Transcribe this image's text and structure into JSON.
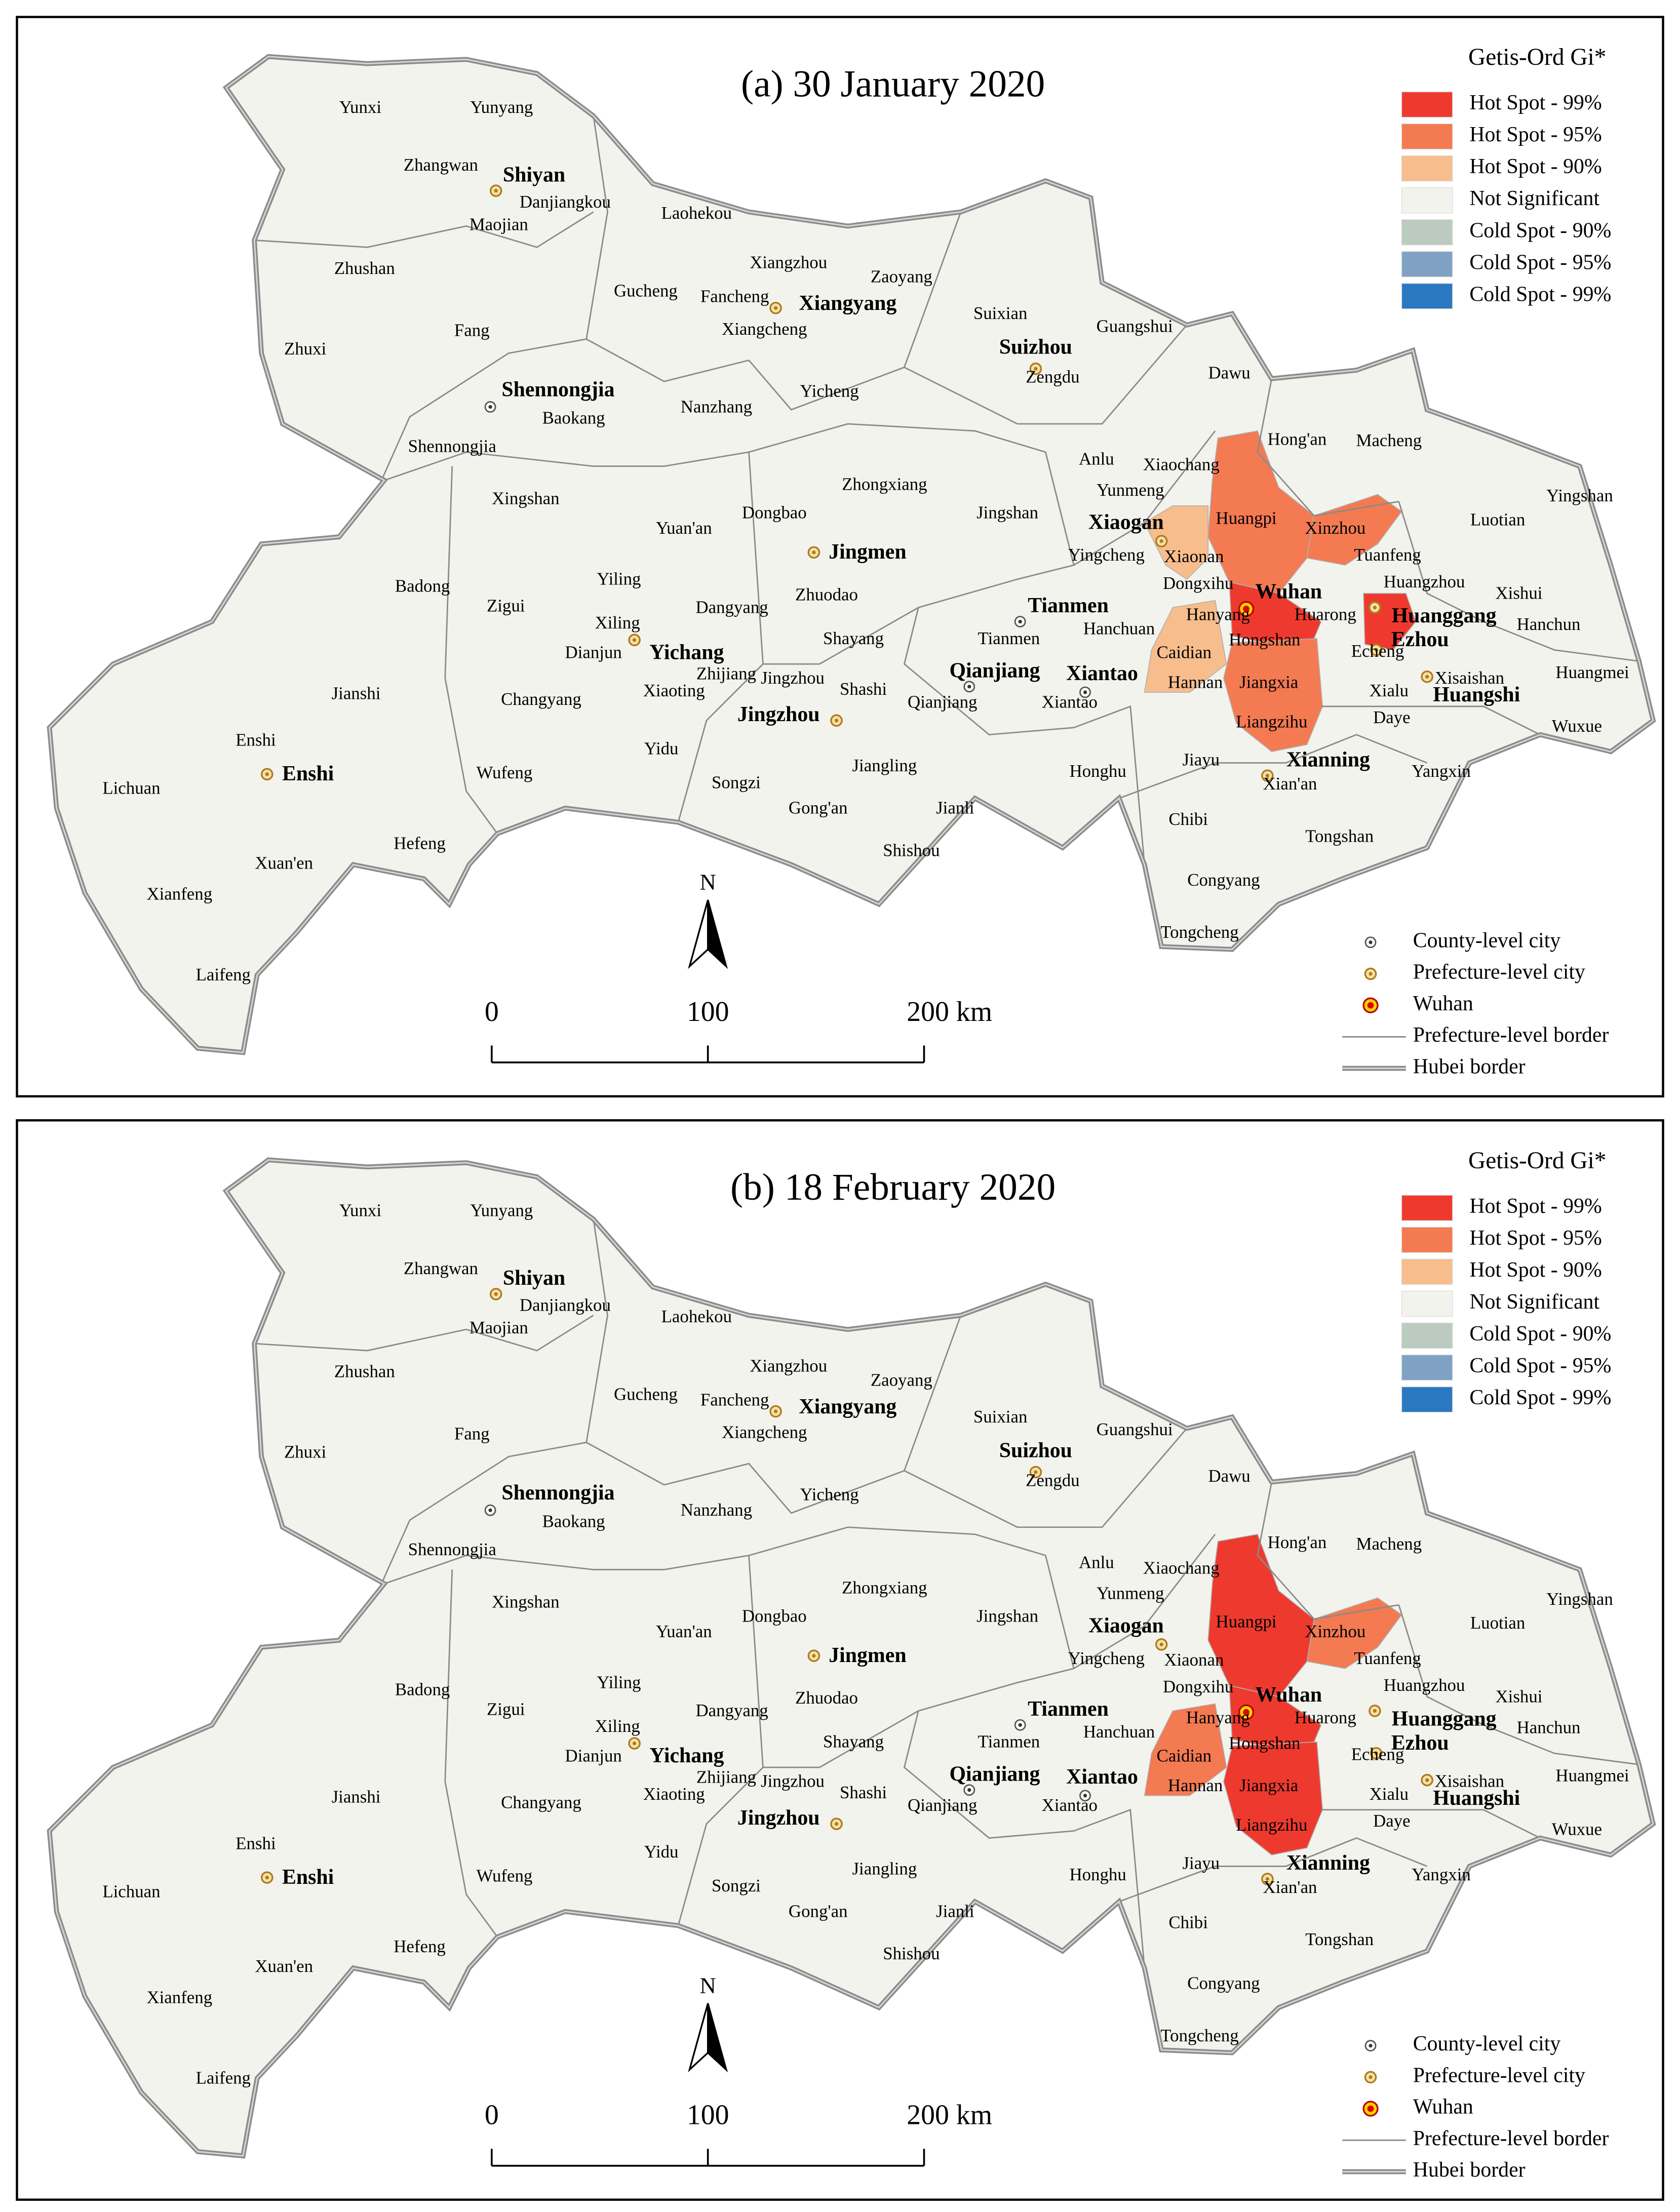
{
  "panels": [
    {
      "title": "(a) 30 January 2020"
    },
    {
      "title": "(b) 18 February 2020"
    }
  ],
  "legend": {
    "title": "Getis-Ord Gi*",
    "items": [
      {
        "label": "Hot Spot - 99%",
        "color": "#ee3a2e"
      },
      {
        "label": "Hot Spot - 95%",
        "color": "#f47a52"
      },
      {
        "label": "Hot Spot - 90%",
        "color": "#f8bd8c"
      },
      {
        "label": "Not Significant",
        "color": "#f3f3ee"
      },
      {
        "label": "Cold Spot - 90%",
        "color": "#bccbbf"
      },
      {
        "label": "Cold Spot - 95%",
        "color": "#7fa2c4"
      },
      {
        "label": "Cold Spot - 99%",
        "color": "#2a78c0"
      }
    ]
  },
  "symbol_legend": [
    "County-level city",
    "Prefecture-level city",
    "Wuhan",
    "Prefecture-level border",
    "Hubei border"
  ],
  "north": "N",
  "scale_bar": [
    "0",
    "100",
    "200 km"
  ],
  "places": [
    "Yunxi",
    "Yunyang",
    "Zhangwan",
    "Shiyan",
    "Danjiangkou",
    "Maojian",
    "Laohekou",
    "Zhushan",
    "Gucheng",
    "Fancheng",
    "Xiangyang",
    "Xiangzhou",
    "Zaoyang",
    "Xiangcheng",
    "Suixian",
    "Suizhou",
    "Zengdu",
    "Guangshui",
    "Dawu",
    "Zhuxi",
    "Fang",
    "Shennongjia",
    "Baokang",
    "Nanzhang",
    "Yicheng",
    "Shennongjia",
    "Hong'an",
    "Macheng",
    "Anlu",
    "Xiaochang",
    "Yunmeng",
    "Xingshan",
    "Zhongxiang",
    "Jingshan",
    "Huangpi",
    "Xiaogan",
    "Xinzhou",
    "Luotian",
    "Yingshan",
    "Dongbao",
    "Yuan'an",
    "Jingmen",
    "Yingcheng",
    "Xiaonan",
    "Tuanfeng",
    "Badong",
    "Yiling",
    "Zhuodao",
    "Dongxihu",
    "Wuhan",
    "Huangzhou",
    "Xishui",
    "Zigui",
    "Dangyang",
    "Tianmen",
    "Hanchuan",
    "Hanyang",
    "Huarong",
    "Huanggang",
    "Hanchun",
    "Xiling",
    "Shayang",
    "Tianmen",
    "Hongshan",
    "Ezhou",
    "Dianjun",
    "Yichang",
    "Qianjiang",
    "Xiantao",
    "Caidian",
    "Echeng",
    "Xisaishan",
    "Huangmei",
    "Zhijiang",
    "Jingzhou",
    "Shashi",
    "Xiaoting",
    "Qianjiang",
    "Xiantao",
    "Hannan",
    "Jiangxia",
    "Xialu",
    "Huangshi",
    "Changyang",
    "Jianshi",
    "Jingzhou",
    "Daye",
    "Wuxue",
    "Enshi",
    "Yidu",
    "Liangzihu",
    "Jiayu",
    "Xianning",
    "Enshi",
    "Wufeng",
    "Songzi",
    "Jiangling",
    "Honghu",
    "Xian'an",
    "Yangxin",
    "Lichuan",
    "Gong'an",
    "Chibi",
    "Tongshan",
    "Hefeng",
    "Jianli",
    "Shishou",
    "Xuan'en",
    "Xianfeng",
    "Congyang",
    "Tongcheng",
    "Laifeng"
  ]
}
